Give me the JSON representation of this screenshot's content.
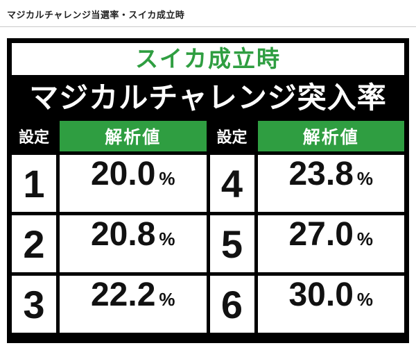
{
  "page": {
    "heading": "マジカルチャレンジ当選率・スイカ成立時"
  },
  "table": {
    "subtitle": "スイカ成立時",
    "title": "マジカルチャレンジ突入率",
    "setting_header": "設定",
    "value_header": "解析値",
    "unit": "%",
    "rows": [
      {
        "s1": "1",
        "v1": "20.0",
        "s2": "4",
        "v2": "23.8"
      },
      {
        "s1": "2",
        "v1": "20.8",
        "s2": "5",
        "v2": "27.0"
      },
      {
        "s1": "3",
        "v1": "22.2",
        "s2": "6",
        "v2": "30.0"
      }
    ]
  },
  "colors": {
    "accent_green": "#2f9e41",
    "frame_black": "#000000",
    "text_dark": "#111111"
  }
}
